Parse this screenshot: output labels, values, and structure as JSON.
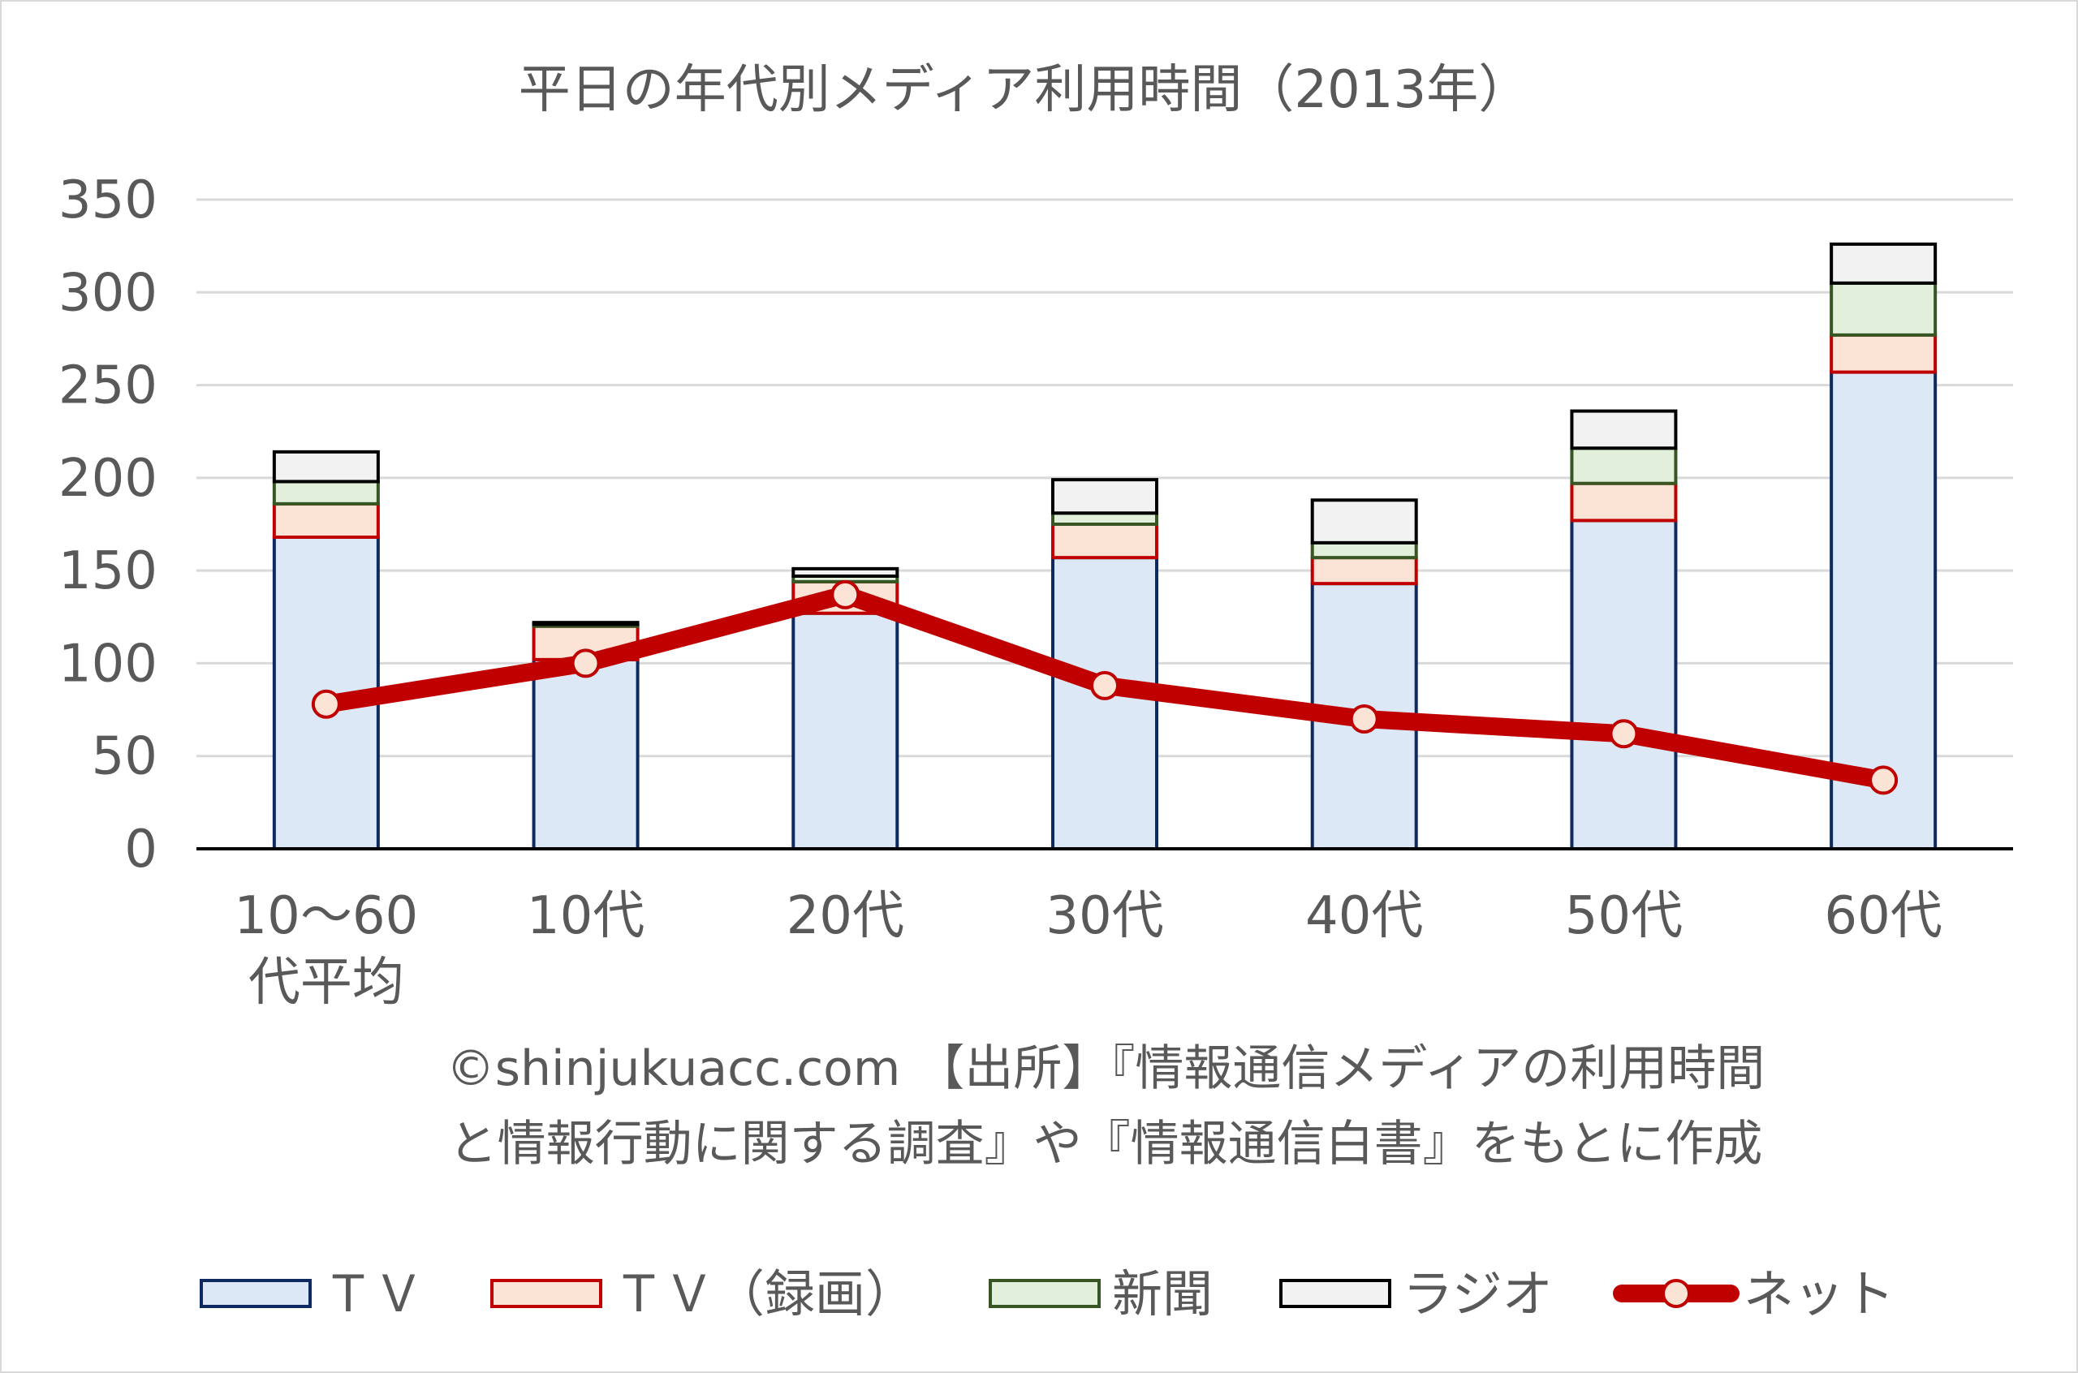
{
  "chart_data": {
    "type": "bar",
    "title": "平日の年代別メディア利用時間（2013年）",
    "categories": [
      [
        "10～60",
        "代平均"
      ],
      [
        "10代"
      ],
      [
        "20代"
      ],
      [
        "30代"
      ],
      [
        "40代"
      ],
      [
        "50代"
      ],
      [
        "60代"
      ]
    ],
    "ylim": [
      0,
      350
    ],
    "yticks": [
      0,
      50,
      100,
      150,
      200,
      250,
      300,
      350
    ],
    "grid": true,
    "legend_position": "bottom",
    "series": [
      {
        "name": "ＴＶ",
        "kind": "stacked-bar",
        "fill": "#dce8f5",
        "stroke": "#0f2a60",
        "values": [
          168,
          102,
          127,
          157,
          143,
          177,
          257
        ]
      },
      {
        "name": "ＴＶ（録画）",
        "kind": "stacked-bar",
        "fill": "#fbe3d6",
        "stroke": "#c00000",
        "values": [
          18,
          18,
          17,
          18,
          14,
          20,
          20
        ]
      },
      {
        "name": "新聞",
        "kind": "stacked-bar",
        "fill": "#e2efda",
        "stroke": "#375623",
        "values": [
          12,
          1,
          3,
          6,
          8,
          19,
          28
        ]
      },
      {
        "name": "ラジオ",
        "kind": "stacked-bar",
        "fill": "#f2f2f2",
        "stroke": "#000000",
        "values": [
          16,
          1,
          4,
          18,
          23,
          20,
          21
        ]
      },
      {
        "name": "ネット",
        "kind": "line",
        "color": "#c00000",
        "marker_fill": "#fbe3d6",
        "values": [
          78,
          100,
          137,
          88,
          70,
          62,
          37
        ]
      }
    ]
  },
  "note": {
    "line1": "©shinjukuacc.com 【出所】『情報通信メディアの利用時間",
    "line2": "と情報行動に関する調査』や『情報通信白書』をもとに作成"
  }
}
